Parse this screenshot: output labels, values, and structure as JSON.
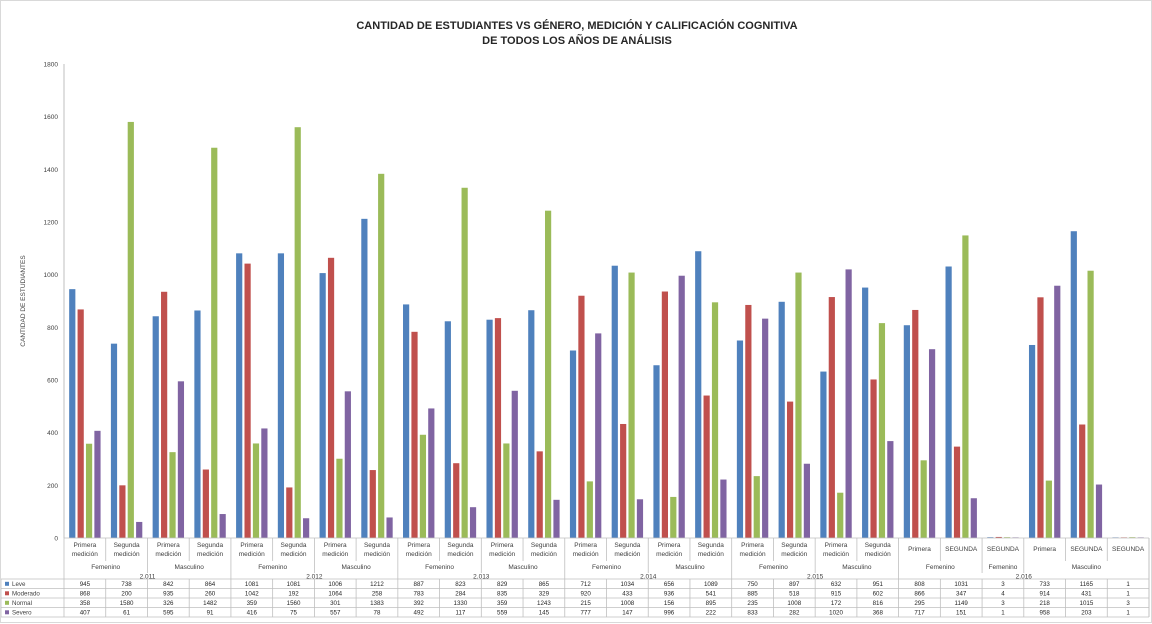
{
  "chart_data": {
    "type": "bar",
    "title": "CANTIDAD DE ESTUDIANTES VS GÉNERO, MEDICIÓN Y CALIFICACIÓN COGNITIVA",
    "subtitle": "DE TODOS LOS AÑOS DE ANÁLISIS",
    "ylabel": "CANTIDAD DE ESTUDIANTES",
    "xlabel": "",
    "ylim": [
      0,
      1800
    ],
    "yticks": [
      0,
      200,
      400,
      600,
      800,
      1000,
      1200,
      1400,
      1600,
      1800
    ],
    "grid": false,
    "legend_placement": "data-table",
    "categories": [
      [
        "Primera",
        "medición"
      ],
      [
        "Segunda",
        "medición"
      ],
      [
        "Primera",
        "medición"
      ],
      [
        "Segunda",
        "medición"
      ],
      [
        "Primera",
        "medición"
      ],
      [
        "Segunda",
        "medición"
      ],
      [
        "Primera",
        "medición"
      ],
      [
        "Segunda",
        "medición"
      ],
      [
        "Primera",
        "medición"
      ],
      [
        "Segunda",
        "medición"
      ],
      [
        "Primera",
        "medición"
      ],
      [
        "Segunda",
        "medición"
      ],
      [
        "Primera",
        "medición"
      ],
      [
        "Segunda",
        "medición"
      ],
      [
        "Primera",
        "medición"
      ],
      [
        "Segunda",
        "medición"
      ],
      [
        "Primera",
        "medición"
      ],
      [
        "Segunda",
        "medición"
      ],
      [
        "Primera",
        "medición"
      ],
      [
        "Segunda",
        "medición"
      ],
      [
        "Primera"
      ],
      [
        "SEGUNDA"
      ],
      [
        "SEGUNDA"
      ],
      [
        "Primera"
      ],
      [
        "SEGUNDA"
      ],
      [
        "SEGUNDA"
      ]
    ],
    "gender_groups": [
      {
        "label": "Femenino",
        "span": 2
      },
      {
        "label": "Masculino",
        "span": 2
      },
      {
        "label": "Femenino",
        "span": 2
      },
      {
        "label": "Masculino",
        "span": 2
      },
      {
        "label": "Femenino",
        "span": 2
      },
      {
        "label": "Masculino",
        "span": 2
      },
      {
        "label": "Femenino",
        "span": 2
      },
      {
        "label": "Masculino",
        "span": 2
      },
      {
        "label": "Femenino",
        "span": 2
      },
      {
        "label": "Masculino",
        "span": 2
      },
      {
        "label": "Femenino",
        "span": 2
      },
      {
        "label": "Femenino",
        "span": 1
      },
      {
        "label": "Masculino",
        "span": 3
      }
    ],
    "year_groups": [
      {
        "label": "2.011",
        "span": 4
      },
      {
        "label": "2.012",
        "span": 4
      },
      {
        "label": "2.013",
        "span": 4
      },
      {
        "label": "2.014",
        "span": 4
      },
      {
        "label": "2.015",
        "span": 4
      },
      {
        "label": "2.016",
        "span": 6
      }
    ],
    "series": [
      {
        "name": "Leve",
        "color": "#4f81bd",
        "values": [
          945,
          738,
          842,
          864,
          1081,
          1081,
          1006,
          1212,
          887,
          823,
          829,
          865,
          712,
          1034,
          656,
          1089,
          750,
          897,
          632,
          951,
          808,
          1031,
          3,
          733,
          1165,
          1
        ]
      },
      {
        "name": "Moderado",
        "color": "#c0504d",
        "values": [
          868,
          200,
          935,
          260,
          1042,
          192,
          1064,
          258,
          783,
          284,
          835,
          329,
          920,
          433,
          936,
          541,
          885,
          518,
          915,
          602,
          866,
          347,
          4,
          914,
          431,
          1
        ]
      },
      {
        "name": "Normal",
        "color": "#9bbb59",
        "values": [
          358,
          1580,
          326,
          1482,
          359,
          1560,
          301,
          1383,
          392,
          1330,
          359,
          1243,
          215,
          1008,
          156,
          895,
          235,
          1008,
          172,
          816,
          295,
          1149,
          3,
          218,
          1015,
          3
        ]
      },
      {
        "name": "Severo",
        "color": "#8064a2",
        "values": [
          407,
          61,
          595,
          91,
          416,
          75,
          557,
          78,
          492,
          117,
          559,
          145,
          777,
          147,
          996,
          222,
          833,
          282,
          1020,
          368,
          717,
          151,
          1,
          958,
          203,
          1
        ]
      }
    ]
  }
}
